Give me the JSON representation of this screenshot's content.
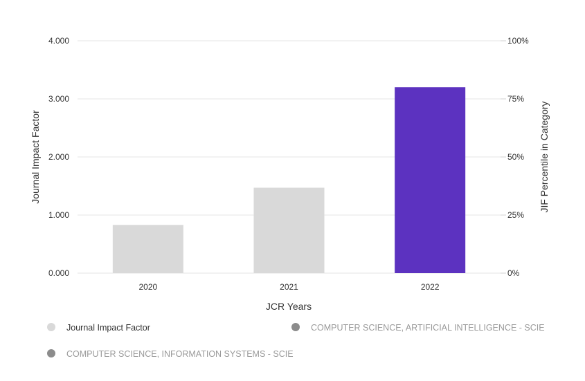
{
  "chart_data": {
    "type": "bar",
    "categories": [
      "2020",
      "2021",
      "2022"
    ],
    "series": [
      {
        "name": "Journal Impact Factor",
        "values": [
          0.83,
          1.47,
          3.2
        ],
        "colors": [
          "#d9d9d9",
          "#d9d9d9",
          "#5c32c0"
        ]
      }
    ],
    "xlabel": "JCR Years",
    "ylabel": "Journal Impact Factor",
    "ylabel_right": "JIF Percentile in Category",
    "ylim": [
      0,
      4
    ],
    "ylim_right": [
      0,
      100
    ],
    "y_ticks": [
      "0.000",
      "1.000",
      "2.000",
      "3.000",
      "4.000"
    ],
    "y_right_ticks": [
      "0%",
      "25%",
      "50%",
      "75%",
      "100%"
    ],
    "grid": true,
    "legend_position": "bottom-left",
    "legend": [
      {
        "label": "Journal Impact Factor",
        "color": "#d9d9d9",
        "active": true
      },
      {
        "label": "COMPUTER SCIENCE, ARTIFICIAL INTELLIGENCE - SCIE",
        "color": "#8c8c8c",
        "active": false
      },
      {
        "label": "COMPUTER SCIENCE, INFORMATION SYSTEMS - SCIE",
        "color": "#8c8c8c",
        "active": false
      }
    ]
  }
}
